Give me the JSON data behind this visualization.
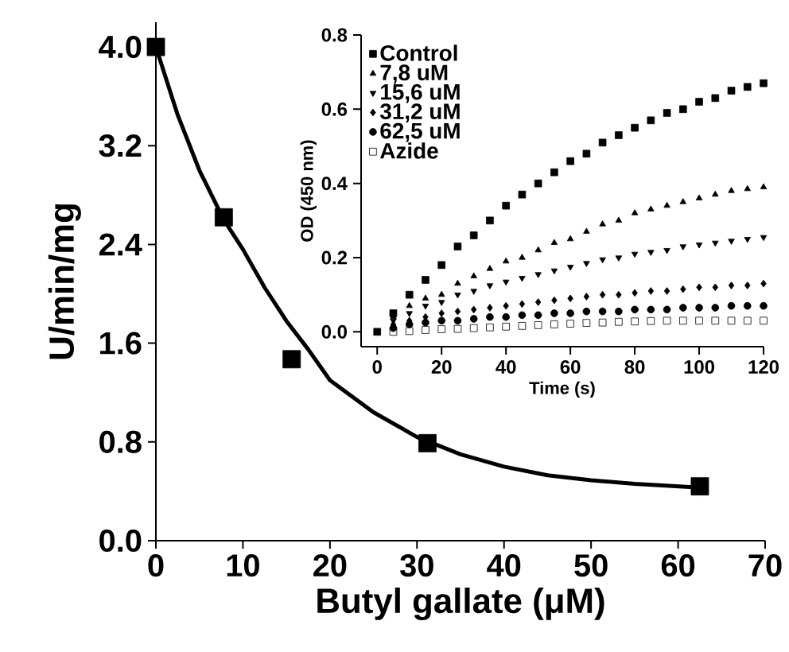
{
  "chart_data": [
    {
      "type": "scatter",
      "xlabel": "Butyl gallate (μM)",
      "ylabel": "U/min/mg",
      "xlim": [
        0,
        70
      ],
      "ylim": [
        0,
        4.2
      ],
      "xticks": [
        0,
        10,
        20,
        30,
        40,
        50,
        60,
        70
      ],
      "yticks": [
        {
          "value": 0,
          "label": "0.0"
        },
        {
          "value": 0.8,
          "label": "0.8"
        },
        {
          "value": 1.6,
          "label": "1.6"
        },
        {
          "value": 2.4,
          "label": "2.4"
        },
        {
          "value": 3.2,
          "label": "3.2"
        },
        {
          "value": 4.0,
          "label": "4.0"
        }
      ],
      "grid": false,
      "legend": false,
      "series": [
        {
          "type": "scatter",
          "marker": "square",
          "color": "#000000",
          "x": [
            0,
            7.8,
            15.6,
            31.2,
            62.5
          ],
          "values": [
            4.0,
            2.62,
            1.47,
            0.79,
            0.44
          ]
        },
        {
          "type": "line",
          "marker": "none",
          "color": "#000000",
          "x": [
            0,
            2.5,
            5,
            7.8,
            10,
            12.5,
            15,
            17.5,
            20,
            25,
            30,
            35,
            40,
            45,
            50,
            55,
            62.5
          ],
          "values": [
            4.0,
            3.45,
            3.0,
            2.6,
            2.36,
            2.05,
            1.78,
            1.55,
            1.3,
            1.04,
            0.84,
            0.7,
            0.6,
            0.53,
            0.49,
            0.46,
            0.43
          ]
        }
      ]
    },
    {
      "type": "scatter",
      "xlabel": "Time (s)",
      "ylabel": "OD (450 nm)",
      "xlim": [
        -5,
        120
      ],
      "ylim": [
        -0.04,
        0.8
      ],
      "xticks": [
        0,
        20,
        40,
        60,
        80,
        100,
        120
      ],
      "yticks": [
        {
          "value": 0,
          "label": "0.0"
        },
        {
          "value": 0.2,
          "label": "0.2"
        },
        {
          "value": 0.4,
          "label": "0.4"
        },
        {
          "value": 0.6,
          "label": "0.6"
        },
        {
          "value": 0.8,
          "label": "0.8"
        }
      ],
      "grid": false,
      "legend": "top left",
      "x": [
        0,
        5,
        10,
        15,
        20,
        25,
        30,
        35,
        40,
        45,
        50,
        55,
        60,
        65,
        70,
        75,
        80,
        85,
        90,
        95,
        100,
        105,
        110,
        115,
        120
      ],
      "series": [
        {
          "name": "Control",
          "marker": "square",
          "color": "#000000",
          "values": [
            0,
            0.05,
            0.1,
            0.14,
            0.18,
            0.23,
            0.26,
            0.3,
            0.34,
            0.37,
            0.4,
            0.43,
            0.46,
            0.48,
            0.51,
            0.53,
            0.55,
            0.57,
            0.59,
            0.6,
            0.62,
            0.63,
            0.65,
            0.66,
            0.67
          ]
        },
        {
          "name": "7,8 uM",
          "marker": "triangle",
          "color": "#000000",
          "values": [
            null,
            0.04,
            0.07,
            0.09,
            0.1,
            0.13,
            0.15,
            0.17,
            0.19,
            0.2,
            0.22,
            0.24,
            0.25,
            0.27,
            0.29,
            0.3,
            0.32,
            0.33,
            0.34,
            0.35,
            0.36,
            0.37,
            0.38,
            0.385,
            0.39
          ]
        },
        {
          "name": "15,6 uM",
          "marker": "triangle-down",
          "color": "#000000",
          "values": [
            null,
            0.03,
            0.05,
            0.07,
            0.08,
            0.1,
            0.11,
            0.125,
            0.135,
            0.145,
            0.155,
            0.165,
            0.175,
            0.185,
            0.195,
            0.2,
            0.21,
            0.215,
            0.22,
            0.23,
            0.235,
            0.24,
            0.245,
            0.25,
            0.255
          ]
        },
        {
          "name": "31,2 uM",
          "marker": "diamond",
          "color": "#000000",
          "values": [
            null,
            0.02,
            0.03,
            0.04,
            0.05,
            0.055,
            0.06,
            0.065,
            0.07,
            0.075,
            0.08,
            0.085,
            0.09,
            0.095,
            0.1,
            0.1,
            0.105,
            0.11,
            0.11,
            0.115,
            0.12,
            0.12,
            0.125,
            0.125,
            0.13
          ]
        },
        {
          "name": "62,5 uM",
          "marker": "circle",
          "color": "#000000",
          "values": [
            null,
            0.01,
            0.02,
            0.025,
            0.03,
            0.03,
            0.035,
            0.04,
            0.04,
            0.045,
            0.045,
            0.05,
            0.05,
            0.055,
            0.055,
            0.055,
            0.06,
            0.06,
            0.06,
            0.065,
            0.065,
            0.065,
            0.07,
            0.07,
            0.07
          ]
        },
        {
          "name": "Azide",
          "marker": "square-open",
          "color": "#000000",
          "values": [
            null,
            0,
            0.002,
            0.005,
            0.007,
            0.008,
            0.01,
            0.012,
            0.014,
            0.016,
            0.018,
            0.02,
            0.022,
            0.024,
            0.025,
            0.027,
            0.028,
            0.029,
            0.03,
            0.03,
            0.03,
            0.03,
            0.03,
            0.03,
            0.03
          ]
        }
      ]
    }
  ]
}
